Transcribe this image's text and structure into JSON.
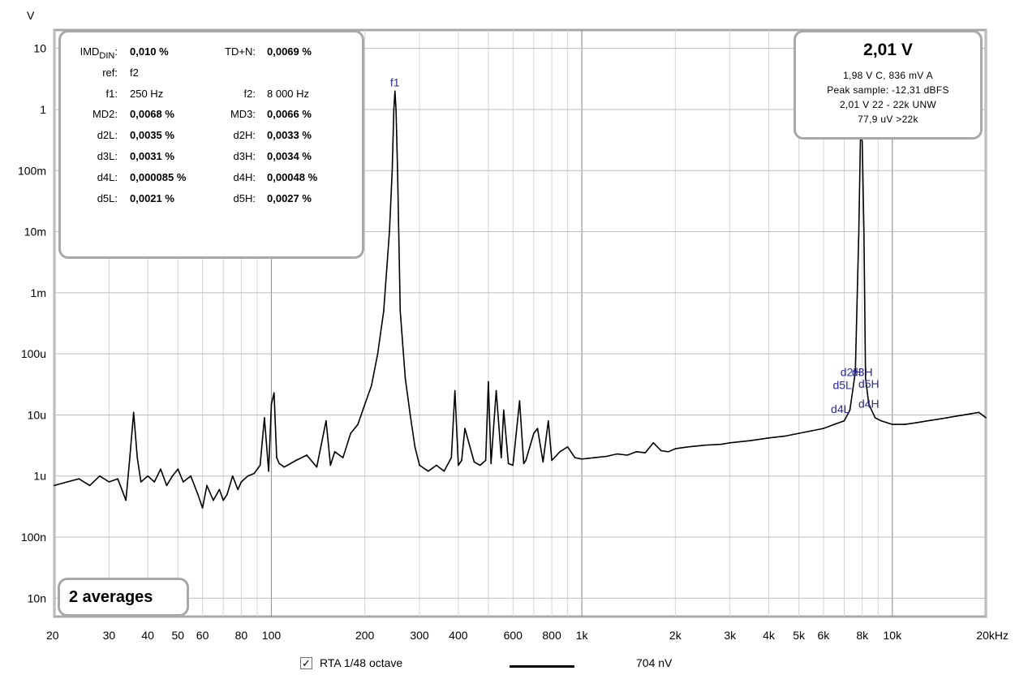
{
  "chart_data": {
    "type": "line",
    "xlabel": "",
    "ylabel": "V",
    "x_scale": "log",
    "y_scale": "log",
    "xlim": [
      20,
      20000
    ],
    "ylim": [
      5e-09,
      20
    ],
    "grid": true,
    "x_ticks": [
      {
        "v": 20,
        "label": "20"
      },
      {
        "v": 30,
        "label": "30"
      },
      {
        "v": 40,
        "label": "40"
      },
      {
        "v": 50,
        "label": "50"
      },
      {
        "v": 60,
        "label": "60"
      },
      {
        "v": 80,
        "label": "80"
      },
      {
        "v": 100,
        "label": "100"
      },
      {
        "v": 200,
        "label": "200"
      },
      {
        "v": 300,
        "label": "300"
      },
      {
        "v": 400,
        "label": "400"
      },
      {
        "v": 600,
        "label": "600"
      },
      {
        "v": 800,
        "label": "800"
      },
      {
        "v": 1000,
        "label": "1k"
      },
      {
        "v": 2000,
        "label": "2k"
      },
      {
        "v": 3000,
        "label": "3k"
      },
      {
        "v": 4000,
        "label": "4k"
      },
      {
        "v": 5000,
        "label": "5k"
      },
      {
        "v": 6000,
        "label": "6k"
      },
      {
        "v": 8000,
        "label": "8k"
      },
      {
        "v": 10000,
        "label": "10k"
      },
      {
        "v": 20000,
        "label": "20kHz"
      }
    ],
    "y_ticks": [
      {
        "v": 10,
        "label": "10"
      },
      {
        "v": 1,
        "label": "1"
      },
      {
        "v": 0.1,
        "label": "100m"
      },
      {
        "v": 0.01,
        "label": "10m"
      },
      {
        "v": 0.001,
        "label": "1m"
      },
      {
        "v": 0.0001,
        "label": "100u"
      },
      {
        "v": 1e-05,
        "label": "10u"
      },
      {
        "v": 1e-06,
        "label": "1u"
      },
      {
        "v": 1e-07,
        "label": "100n"
      },
      {
        "v": 1e-08,
        "label": "10n"
      }
    ],
    "series": [
      {
        "name": "RTA 1/48 octave",
        "color": "#000000",
        "x": [
          20,
          22,
          24,
          26,
          28,
          30,
          32,
          33,
          34,
          35,
          36,
          37,
          38,
          40,
          42,
          44,
          46,
          48,
          50,
          52,
          55,
          58,
          60,
          62,
          65,
          68,
          70,
          72,
          75,
          78,
          80,
          84,
          88,
          92,
          95,
          98,
          100,
          102,
          104,
          106,
          110,
          120,
          130,
          140,
          150,
          155,
          160,
          170,
          180,
          190,
          200,
          210,
          220,
          230,
          240,
          245,
          248,
          250,
          252,
          255,
          260,
          270,
          280,
          290,
          300,
          320,
          340,
          360,
          380,
          390,
          400,
          410,
          420,
          450,
          470,
          490,
          500,
          510,
          530,
          550,
          560,
          580,
          600,
          630,
          650,
          660,
          700,
          720,
          750,
          780,
          800,
          850,
          900,
          950,
          1000,
          1100,
          1200,
          1300,
          1400,
          1500,
          1600,
          1700,
          1800,
          1900,
          2000,
          2200,
          2500,
          2800,
          3000,
          3500,
          4000,
          4500,
          5000,
          5500,
          6000,
          6500,
          7000,
          7300,
          7600,
          7800,
          7900,
          8000,
          8100,
          8200,
          8400,
          8800,
          9200,
          10000,
          11000,
          12000,
          13000,
          14000,
          15000,
          16000,
          17000,
          18000,
          19000,
          20000
        ],
        "values": [
          7e-07,
          8e-07,
          9e-07,
          7e-07,
          1e-06,
          8e-07,
          9e-07,
          6e-07,
          4e-07,
          2e-06,
          1.1e-05,
          2e-06,
          8e-07,
          1e-06,
          8e-07,
          1.3e-06,
          7e-07,
          1e-06,
          1.3e-06,
          8e-07,
          1e-06,
          5e-07,
          3e-07,
          7e-07,
          4e-07,
          6e-07,
          4e-07,
          5e-07,
          1e-06,
          6e-07,
          8e-07,
          1e-06,
          1.1e-06,
          1.5e-06,
          9e-06,
          1.2e-06,
          1.5e-05,
          2.3e-05,
          2e-06,
          1.6e-06,
          1.4e-06,
          1.8e-06,
          2.2e-06,
          1.4e-06,
          8e-06,
          1.5e-06,
          2.5e-06,
          2e-06,
          5e-06,
          7e-06,
          1.5e-05,
          3e-05,
          0.0001,
          0.0005,
          0.01,
          0.1,
          1,
          2.0,
          1,
          0.1,
          0.0005,
          4e-05,
          1e-05,
          3e-06,
          1.5e-06,
          1.2e-06,
          1.5e-06,
          1.2e-06,
          2e-06,
          2.5e-05,
          1.5e-06,
          1.8e-06,
          6e-06,
          1.7e-06,
          1.5e-06,
          1.8e-06,
          3.5e-05,
          1.6e-06,
          2.5e-05,
          2e-06,
          1.2e-05,
          1.6e-06,
          1.5e-06,
          1.7e-05,
          1.6e-06,
          1.8e-06,
          5e-06,
          6e-06,
          1.7e-06,
          8e-06,
          1.8e-06,
          2.5e-06,
          3e-06,
          2e-06,
          1.9e-06,
          2e-06,
          2.1e-06,
          2.3e-06,
          2.2e-06,
          2.5e-06,
          2.4e-06,
          3.5e-06,
          2.6e-06,
          2.5e-06,
          2.8e-06,
          3e-06,
          3.2e-06,
          3.3e-06,
          3.5e-06,
          3.8e-06,
          4.2e-06,
          4.5e-06,
          5e-06,
          5.5e-06,
          6e-06,
          7e-06,
          8e-06,
          1.2e-05,
          5e-05,
          0.01,
          0.4,
          0.3,
          0.01,
          4e-05,
          1.5e-05,
          9e-06,
          8e-06,
          7e-06,
          7e-06,
          7.5e-06,
          8e-06,
          8.5e-06,
          9e-06,
          9.5e-06,
          1e-05,
          1.05e-05,
          1.1e-05,
          9e-06
        ]
      }
    ],
    "annotations": [
      {
        "text": "f1",
        "x": 250,
        "y": 2.0
      },
      {
        "text": "d5L",
        "x": 6900,
        "y": 2.2e-05
      },
      {
        "text": "d2H",
        "x": 7350,
        "y": 3.6e-05
      },
      {
        "text": "d3H",
        "x": 8000,
        "y": 3.6e-05
      },
      {
        "text": "d5H",
        "x": 8400,
        "y": 2.3e-05
      },
      {
        "text": "d4L",
        "x": 6800,
        "y": 9e-06
      },
      {
        "text": "d4H",
        "x": 8400,
        "y": 1.1e-05
      }
    ]
  },
  "imd_panel": {
    "rows": [
      {
        "l1": "IMD",
        "l1_sub": "DIN",
        "l1_suffix": ":",
        "v1": "0,010 %",
        "l2": "TD+N:",
        "v2": "0,0069 %"
      },
      {
        "l1": "ref:",
        "v1": "f2",
        "v1_plain": true
      },
      {
        "l1": "f1:",
        "v1": "250 Hz",
        "v1_plain": true,
        "l2": "f2:",
        "v2": "8 000 Hz",
        "v2_plain": true
      },
      {
        "l1": "MD2:",
        "v1": "0,0068 %",
        "l2": "MD3:",
        "v2": "0,0066 %"
      },
      {
        "l1": "d2L:",
        "v1": "0,0035 %",
        "l2": "d2H:",
        "v2": "0,0033 %"
      },
      {
        "l1": "d3L:",
        "v1": "0,0031 %",
        "l2": "d3H:",
        "v2": "0,0034 %"
      },
      {
        "l1": "d4L:",
        "v1": "0,000085 %",
        "l2": "d4H:",
        "v2": "0,00048 %"
      },
      {
        "l1": "d5L:",
        "v1": "0,0021 %",
        "l2": "d5H:",
        "v2": "0,0027 %"
      }
    ]
  },
  "level_panel": {
    "main": "2,01 V",
    "lines": [
      "1,98 V C, 836 mV A",
      "Peak sample: -12,31 dBFS",
      "2,01 V 22 - 22k UNW",
      "77,9 uV >22k"
    ]
  },
  "averages_label": "2 averages",
  "legend": {
    "checked": true,
    "check_glyph": "✓",
    "label": "RTA 1/48 octave",
    "value": "704 nV"
  }
}
